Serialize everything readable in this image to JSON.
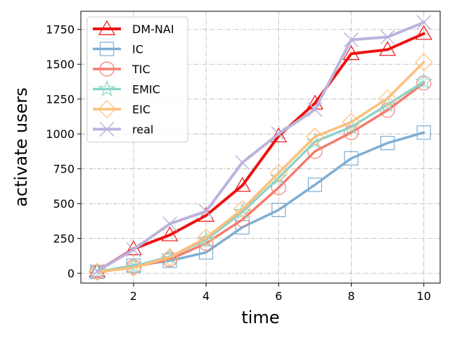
{
  "chart_data": {
    "type": "line",
    "title": "",
    "xlabel": "time",
    "ylabel": "activate users",
    "xlim": [
      0.55,
      10.45
    ],
    "ylim": [
      -70,
      1880
    ],
    "xticks": [
      2,
      4,
      6,
      8,
      10
    ],
    "yticks": [
      0,
      250,
      500,
      750,
      1000,
      1250,
      1500,
      1750
    ],
    "grid": true,
    "legend_position": "top-left",
    "x": [
      1,
      2,
      3,
      4,
      5,
      6,
      7,
      8,
      9,
      10
    ],
    "series": [
      {
        "name": "DM-NAI",
        "color": "#ee1111",
        "marker": "triangle",
        "width": 4,
        "values": [
          15,
          175,
          275,
          415,
          630,
          985,
          1220,
          1575,
          1605,
          1720
        ]
      },
      {
        "name": "IC",
        "color": "#7eaed4",
        "marker": "square",
        "width": 3.5,
        "values": [
          10,
          55,
          90,
          150,
          330,
          455,
          635,
          825,
          935,
          1010
        ]
      },
      {
        "name": "TIC",
        "color": "#f47c6f",
        "marker": "circle",
        "width": 3.5,
        "values": [
          10,
          45,
          100,
          215,
          385,
          615,
          875,
          1010,
          1170,
          1365
        ]
      },
      {
        "name": "EMIC",
        "color": "#8ed3c7",
        "marker": "star",
        "width": 3.5,
        "values": [
          12,
          50,
          120,
          240,
          440,
          685,
          945,
          1050,
          1210,
          1375
        ]
      },
      {
        "name": "EIC",
        "color": "#fdbf7a",
        "marker": "diamond",
        "width": 3.5,
        "values": [
          10,
          40,
          115,
          255,
          460,
          720,
          980,
          1085,
          1255,
          1515
        ]
      },
      {
        "name": "real",
        "color": "#bcb3dd",
        "marker": "x",
        "width": 4,
        "values": [
          15,
          170,
          355,
          445,
          795,
          1000,
          1175,
          1675,
          1695,
          1800
        ]
      }
    ]
  }
}
